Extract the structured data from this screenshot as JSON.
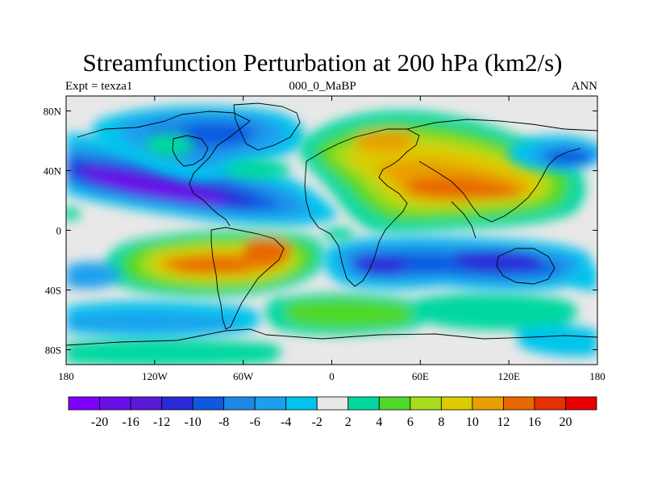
{
  "title": "Streamfunction Perturbation at 200 hPa (km2/s)",
  "subtitle_left": "Expt = texza1",
  "subtitle_center": "000_0_MaBP",
  "subtitle_right": "ANN",
  "lat_ticks": [
    {
      "value": 80,
      "label": "80N"
    },
    {
      "value": 40,
      "label": "40N"
    },
    {
      "value": 0,
      "label": "0"
    },
    {
      "value": -40,
      "label": "40S"
    },
    {
      "value": -80,
      "label": "80S"
    }
  ],
  "lon_ticks": [
    {
      "value": -180,
      "label": "180"
    },
    {
      "value": -120,
      "label": "120W"
    },
    {
      "value": -60,
      "label": "60W"
    },
    {
      "value": 0,
      "label": "0"
    },
    {
      "value": 60,
      "label": "60E"
    },
    {
      "value": 120,
      "label": "120E"
    },
    {
      "value": 180,
      "label": "180"
    }
  ],
  "colorbar": {
    "colors": [
      "#7f00ff",
      "#6a0fe8",
      "#5a18d8",
      "#2a2ad8",
      "#1058e0",
      "#1e88e6",
      "#1aa0ee",
      "#00c4ec",
      "#e8e8e8",
      "#00d8a0",
      "#50d828",
      "#a8dc1c",
      "#dccc00",
      "#e8a000",
      "#e86800",
      "#e83000",
      "#e80000"
    ],
    "labels": [
      "-20",
      "-16",
      "-12",
      "-10",
      "-8",
      "-6",
      "-4",
      "-2",
      "2",
      "4",
      "6",
      "8",
      "10",
      "12",
      "16",
      "20"
    ]
  },
  "field_blobs": [
    {
      "lon": -140,
      "lat": 35,
      "rx": 55,
      "ry": 12,
      "level": 0,
      "note": "negative centre over N Pacific / N America"
    },
    {
      "lon": -100,
      "lat": 24,
      "rx": 45,
      "ry": 10,
      "level": 0
    },
    {
      "lon": -150,
      "lat": 44,
      "rx": 30,
      "ry": 8,
      "level": 3
    },
    {
      "lon": -95,
      "lat": 68,
      "rx": 35,
      "ry": 15,
      "level": 5
    },
    {
      "lon": -65,
      "lat": 70,
      "rx": 20,
      "ry": 12,
      "level": 4
    },
    {
      "lon": -80,
      "lat": -22,
      "rx": 40,
      "ry": 12,
      "level": 15
    },
    {
      "lon": -40,
      "lat": -12,
      "rx": 25,
      "ry": 10,
      "level": 15
    },
    {
      "lon": 80,
      "lat": 25,
      "rx": 35,
      "ry": 12,
      "level": 15
    },
    {
      "lon": 50,
      "lat": 50,
      "rx": 25,
      "ry": 8,
      "level": 13
    },
    {
      "lon": 30,
      "lat": -28,
      "rx": 25,
      "ry": 10,
      "level": 2
    },
    {
      "lon": 110,
      "lat": -22,
      "rx": 30,
      "ry": 12,
      "level": 2
    },
    {
      "lon": 162,
      "lat": 48,
      "rx": 18,
      "ry": 6,
      "level": 2
    }
  ]
}
